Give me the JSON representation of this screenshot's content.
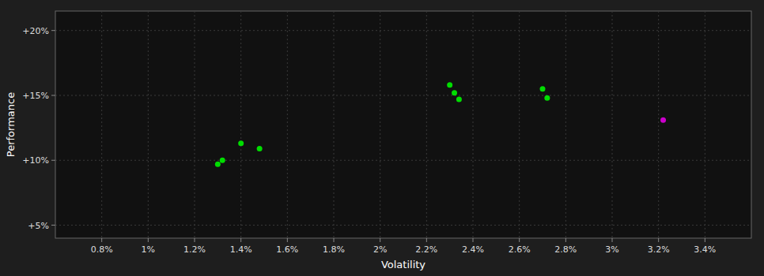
{
  "chart_data": {
    "type": "scatter",
    "xlabel": "Volatility",
    "ylabel": "Performance",
    "series": [
      {
        "color": "#00dd00",
        "x": [
          0.013,
          0.0132,
          0.014,
          0.0148,
          0.023,
          0.0232,
          0.0234,
          0.027,
          0.0272
        ],
        "values": [
          0.097,
          0.1,
          0.113,
          0.109,
          0.158,
          0.152,
          0.147,
          0.155,
          0.148
        ]
      },
      {
        "color": "#cc00cc",
        "x": [
          0.0322
        ],
        "values": [
          0.131
        ]
      }
    ],
    "xlim": [
      0.006,
      0.036
    ],
    "ylim": [
      0.04,
      0.215
    ],
    "xticks": [
      {
        "value": 0.008,
        "label": "0.8%"
      },
      {
        "value": 0.01,
        "label": "1%"
      },
      {
        "value": 0.012,
        "label": "1.2%"
      },
      {
        "value": 0.014,
        "label": "1.4%"
      },
      {
        "value": 0.016,
        "label": "1.6%"
      },
      {
        "value": 0.018,
        "label": "1.8%"
      },
      {
        "value": 0.02,
        "label": "2%"
      },
      {
        "value": 0.022,
        "label": "2.2%"
      },
      {
        "value": 0.024,
        "label": "2.4%"
      },
      {
        "value": 0.026,
        "label": "2.6%"
      },
      {
        "value": 0.028,
        "label": "2.8%"
      },
      {
        "value": 0.03,
        "label": "3%"
      },
      {
        "value": 0.032,
        "label": "3.2%"
      },
      {
        "value": 0.034,
        "label": "3.4%"
      }
    ],
    "yticks": [
      {
        "value": 0.05,
        "label": "+5%"
      },
      {
        "value": 0.1,
        "label": "+10%"
      },
      {
        "value": 0.15,
        "label": "+15%"
      },
      {
        "value": 0.2,
        "label": "+20%"
      }
    ],
    "grid": true
  }
}
